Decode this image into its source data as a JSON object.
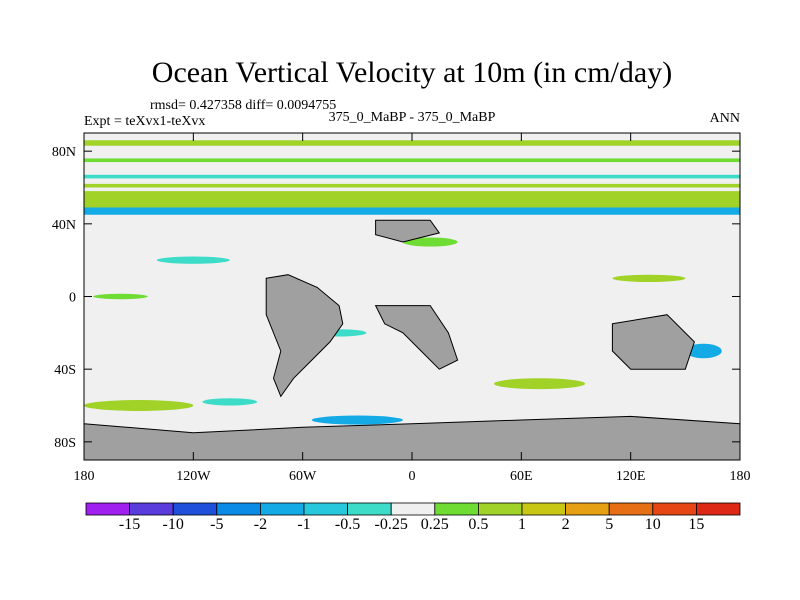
{
  "chart_data": {
    "type": "heatmap",
    "title": "Ocean Vertical Velocity at 10m (in cm/day)",
    "stats_line": "rmsd= 0.427358 diff= 0.0094755",
    "left_label": "Expt = teXvx1-teXvx",
    "center_label": "375_0_MaBP - 375_0_MaBP",
    "right_label": "ANN",
    "x_ticks": [
      "180",
      "120W",
      "60W",
      "0",
      "60E",
      "120E",
      "180"
    ],
    "x_values": [
      -180,
      -120,
      -60,
      0,
      60,
      120,
      180
    ],
    "y_ticks": [
      "80N",
      "40N",
      "0",
      "40S",
      "80S"
    ],
    "y_values": [
      80,
      40,
      0,
      -40,
      -80
    ],
    "xlim": [
      -180,
      180
    ],
    "ylim": [
      -90,
      90
    ],
    "colorbar_labels": [
      "-15",
      "-10",
      "-5",
      "-2",
      "-1",
      "-0.5",
      "-0.25",
      "0.25",
      "0.5",
      "1",
      "2",
      "5",
      "10",
      "15"
    ],
    "colorbar_colors": [
      "#a020f0",
      "#5a3cdc",
      "#1e50dc",
      "#0a8ce6",
      "#14aae6",
      "#28c8dc",
      "#3cdcc8",
      "#f0f0f0",
      "#6edc32",
      "#a0d228",
      "#c8c814",
      "#e6a014",
      "#e66e14",
      "#e64614",
      "#dc2814"
    ],
    "land_color": "#a0a0a0",
    "bands": [
      {
        "lat0": 49,
        "lat1": 58,
        "color": "#a0d228"
      },
      {
        "lat0": 45,
        "lat1": 49,
        "color": "#14aae6"
      },
      {
        "lat0": 83,
        "lat1": 86,
        "color": "#a0d228"
      },
      {
        "lat0": 74,
        "lat1": 76,
        "color": "#6edc32"
      },
      {
        "lat0": 65,
        "lat1": 67,
        "color": "#3cdcc8"
      },
      {
        "lat0": 60,
        "lat1": 62,
        "color": "#a0d228"
      }
    ],
    "blobs": [
      {
        "lon": -150,
        "lat": -60,
        "w": 60,
        "h": 6,
        "color": "#a0d228"
      },
      {
        "lon": -100,
        "lat": -58,
        "w": 30,
        "h": 4,
        "color": "#3cdcc8"
      },
      {
        "lon": 70,
        "lat": -48,
        "w": 50,
        "h": 6,
        "color": "#a0d228"
      },
      {
        "lon": -30,
        "lat": -68,
        "w": 50,
        "h": 5,
        "color": "#14aae6"
      },
      {
        "lon": 10,
        "lat": 30,
        "w": 30,
        "h": 5,
        "color": "#6edc32"
      },
      {
        "lon": -120,
        "lat": 20,
        "w": 40,
        "h": 4,
        "color": "#3cdcc8"
      },
      {
        "lon": 130,
        "lat": 10,
        "w": 40,
        "h": 4,
        "color": "#a0d228"
      },
      {
        "lon": -40,
        "lat": -20,
        "w": 30,
        "h": 4,
        "color": "#3cdcc8"
      },
      {
        "lon": 160,
        "lat": -30,
        "w": 20,
        "h": 8,
        "color": "#14aae6"
      },
      {
        "lon": -160,
        "lat": 0,
        "w": 30,
        "h": 3,
        "color": "#6edc32"
      }
    ],
    "land_polygons": [
      {
        "name": "south-america",
        "points": [
          [
            -80,
            10
          ],
          [
            -68,
            12
          ],
          [
            -52,
            5
          ],
          [
            -40,
            -5
          ],
          [
            -38,
            -15
          ],
          [
            -45,
            -25
          ],
          [
            -55,
            -35
          ],
          [
            -65,
            -45
          ],
          [
            -72,
            -55
          ],
          [
            -76,
            -45
          ],
          [
            -72,
            -30
          ],
          [
            -80,
            -10
          ]
        ]
      },
      {
        "name": "africa",
        "points": [
          [
            -20,
            -5
          ],
          [
            10,
            -5
          ],
          [
            20,
            -20
          ],
          [
            25,
            -35
          ],
          [
            15,
            -40
          ],
          [
            5,
            -30
          ],
          [
            -5,
            -20
          ],
          [
            -15,
            -15
          ]
        ]
      },
      {
        "name": "australia",
        "points": [
          [
            110,
            -15
          ],
          [
            140,
            -10
          ],
          [
            155,
            -25
          ],
          [
            150,
            -40
          ],
          [
            120,
            -40
          ],
          [
            110,
            -30
          ]
        ]
      },
      {
        "name": "antarctica",
        "points": [
          [
            -180,
            -70
          ],
          [
            -120,
            -75
          ],
          [
            -60,
            -72
          ],
          [
            0,
            -70
          ],
          [
            60,
            -68
          ],
          [
            120,
            -66
          ],
          [
            180,
            -70
          ],
          [
            180,
            -90
          ],
          [
            -180,
            -90
          ]
        ]
      },
      {
        "name": "north-land",
        "points": [
          [
            -20,
            42
          ],
          [
            10,
            42
          ],
          [
            15,
            35
          ],
          [
            -5,
            30
          ],
          [
            -20,
            34
          ]
        ]
      }
    ]
  }
}
